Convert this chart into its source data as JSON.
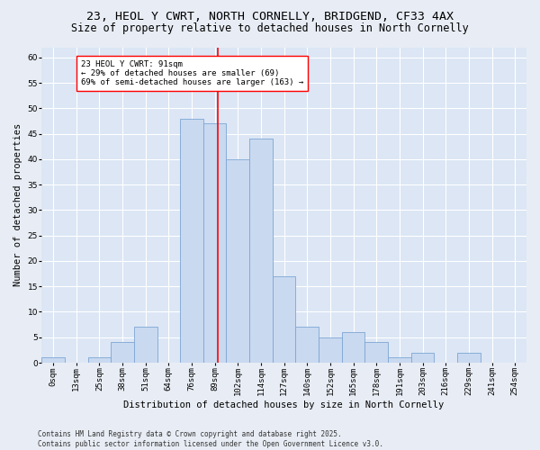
{
  "title_line1": "23, HEOL Y CWRT, NORTH CORNELLY, BRIDGEND, CF33 4AX",
  "title_line2": "Size of property relative to detached houses in North Cornelly",
  "xlabel": "Distribution of detached houses by size in North Cornelly",
  "ylabel": "Number of detached properties",
  "footnote": "Contains HM Land Registry data © Crown copyright and database right 2025.\nContains public sector information licensed under the Open Government Licence v3.0.",
  "bin_labels": [
    "0sqm",
    "13sqm",
    "25sqm",
    "38sqm",
    "51sqm",
    "64sqm",
    "76sqm",
    "89sqm",
    "102sqm",
    "114sqm",
    "127sqm",
    "140sqm",
    "152sqm",
    "165sqm",
    "178sqm",
    "191sqm",
    "203sqm",
    "216sqm",
    "229sqm",
    "241sqm",
    "254sqm"
  ],
  "bar_values": [
    1,
    0,
    1,
    4,
    7,
    0,
    48,
    47,
    40,
    44,
    17,
    7,
    5,
    6,
    4,
    1,
    2,
    0,
    2,
    0,
    0
  ],
  "bar_color": "#c9d9f0",
  "bar_edge_color": "#7da6d4",
  "vline_color": "red",
  "vline_x_index": 7.15,
  "annotation_text": "23 HEOL Y CWRT: 91sqm\n← 29% of detached houses are smaller (69)\n69% of semi-detached houses are larger (163) →",
  "annotation_box_color": "white",
  "annotation_box_edge_color": "red",
  "ylim": [
    0,
    62
  ],
  "yticks": [
    0,
    5,
    10,
    15,
    20,
    25,
    30,
    35,
    40,
    45,
    50,
    55,
    60
  ],
  "bg_color": "#e8edf5",
  "plot_bg_color": "#dce6f5",
  "title_fontsize": 9.5,
  "subtitle_fontsize": 8.5,
  "axis_label_fontsize": 7.5,
  "tick_fontsize": 6.5,
  "annotation_fontsize": 6.5,
  "ylabel_fontsize": 7.5,
  "footnote_fontsize": 5.5
}
